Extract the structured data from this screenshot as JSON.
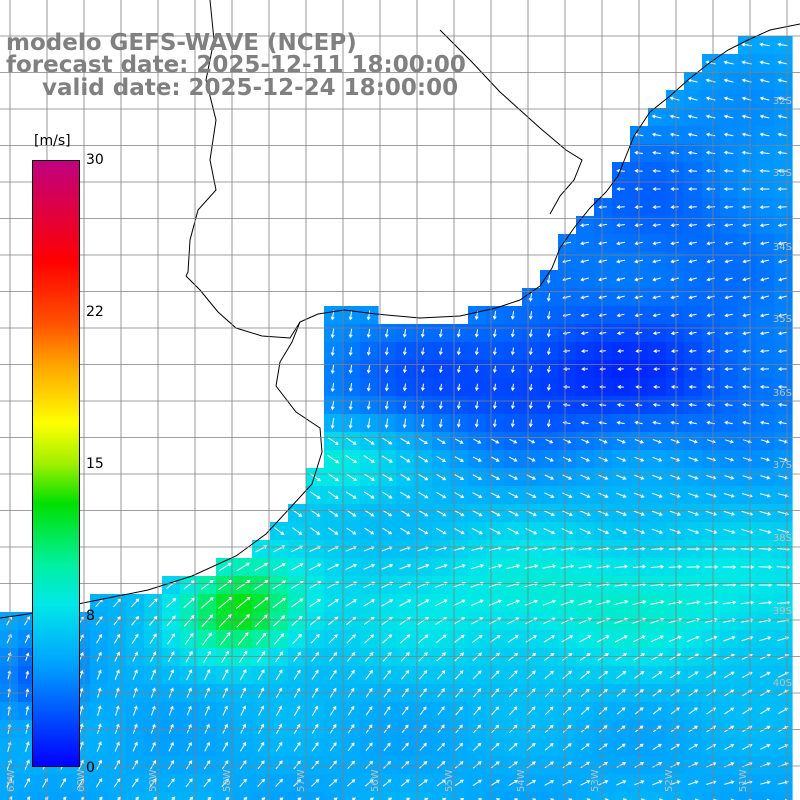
{
  "title": {
    "model": "modelo GEFS-WAVE (NCEP)",
    "forecast": "forecast date: 2025-12-11 18:00:00",
    "valid": "valid date: 2025-12-24 18:00:00"
  },
  "colorbar": {
    "unit": "[m/s]",
    "ticks": [
      "30",
      "22",
      "15",
      "8",
      "0"
    ],
    "range": [
      0,
      30
    ],
    "stops": [
      {
        "v": 0,
        "color": "#0000ff"
      },
      {
        "v": 5,
        "color": "#00a0ff"
      },
      {
        "v": 8,
        "color": "#00e8e8"
      },
      {
        "v": 10,
        "color": "#00f0a0"
      },
      {
        "v": 13,
        "color": "#00e000"
      },
      {
        "v": 15,
        "color": "#a0f000"
      },
      {
        "v": 17,
        "color": "#ffff00"
      },
      {
        "v": 20,
        "color": "#ffa000"
      },
      {
        "v": 22,
        "color": "#ff5000"
      },
      {
        "v": 25,
        "color": "#ff0000"
      },
      {
        "v": 30,
        "color": "#c00080"
      }
    ]
  },
  "lat_labels": [
    "32S",
    "33S",
    "34S",
    "35S",
    "36S",
    "37S",
    "38S",
    "39S",
    "40S"
  ],
  "lon_labels": [
    "61W",
    "60W",
    "59W",
    "58W",
    "57W",
    "56W",
    "55W",
    "54W",
    "53W",
    "52W",
    "51W"
  ],
  "colors": {
    "land": "#ffffff",
    "coast": "#000000",
    "grid": "#808080",
    "arrow": "#ffffff"
  }
}
